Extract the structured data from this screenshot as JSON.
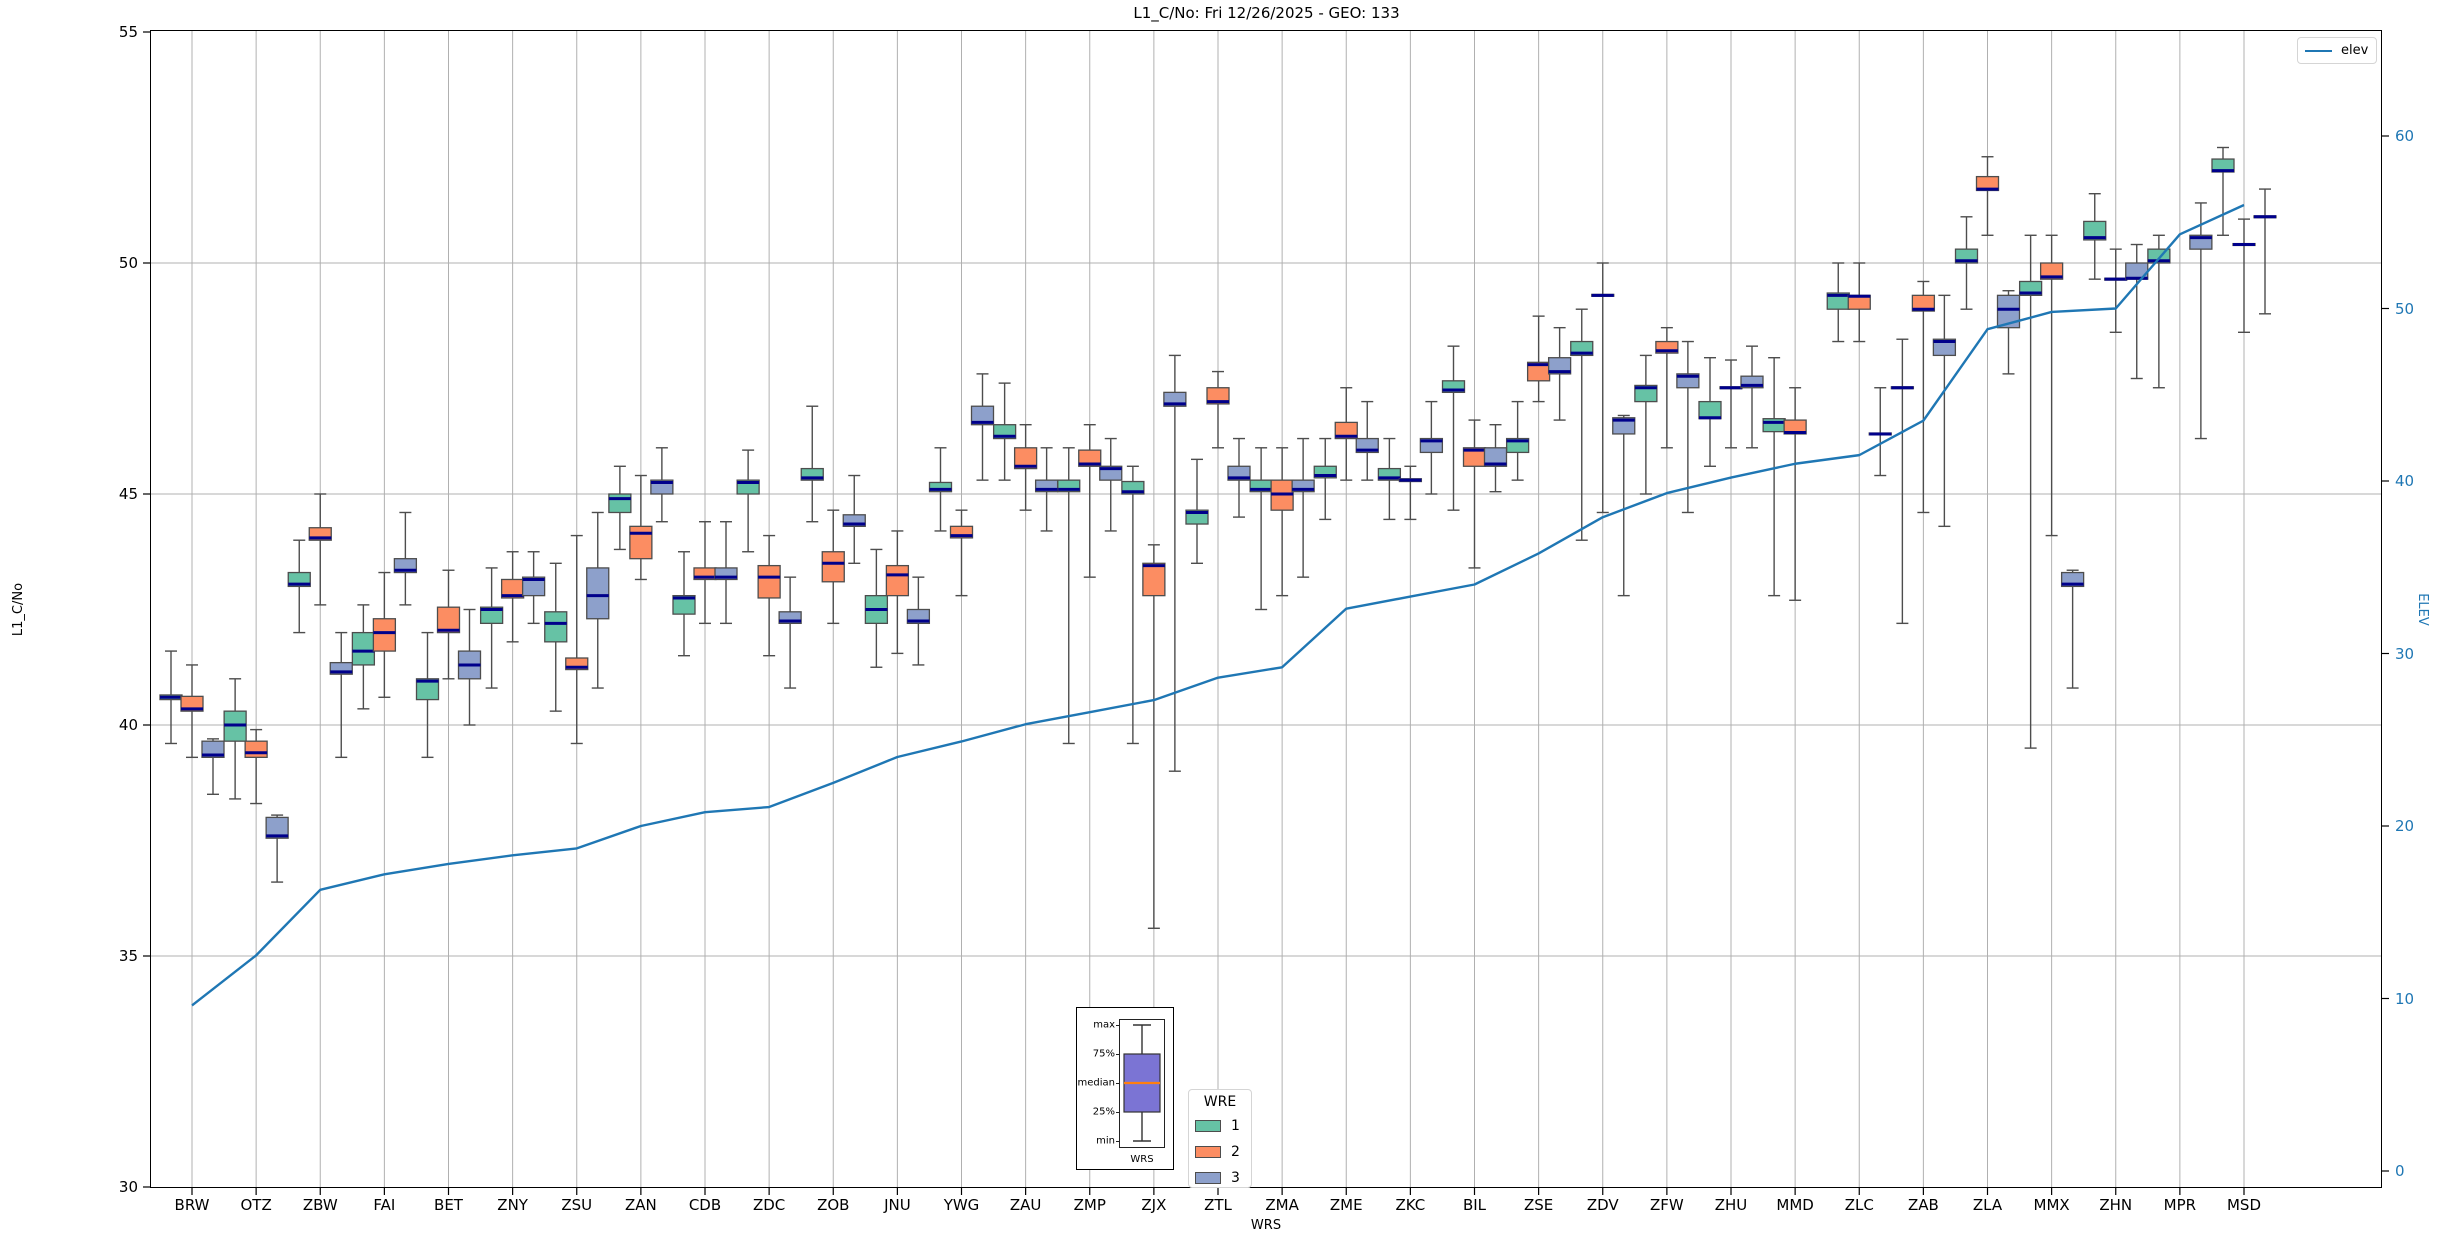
{
  "title": "L1_C/No: Fri 12/26/2025 - GEO: 133",
  "axes": {
    "left": {
      "label": "L1_C/No",
      "ticks": [
        30,
        35,
        40,
        45,
        50,
        55
      ]
    },
    "right": {
      "label": "ELEV",
      "ticks": [
        0,
        10,
        20,
        30,
        40,
        50,
        60
      ],
      "color": "#1f77b4"
    },
    "x": {
      "label": "WRS"
    }
  },
  "legend_elev": {
    "label": "elev"
  },
  "legend_wre": {
    "title": "WRE",
    "items": [
      {
        "label": "1",
        "color": "#66c2a5"
      },
      {
        "label": "2",
        "color": "#fc8d62"
      },
      {
        "label": "3",
        "color": "#8da0cb"
      }
    ]
  },
  "inset": {
    "labels": [
      "max",
      "75%",
      "median",
      "25%",
      "min"
    ],
    "xlabel": "WRS",
    "box_color": "#7b74d4",
    "median_color": "#ff7f0e"
  },
  "chart_data": {
    "type": "grouped-boxplot+line",
    "title": "L1_C/No: Fri 12/26/2025 - GEO: 133",
    "xlabel": "WRS",
    "ylabel_left": "L1_C/No",
    "ylabel_right": "ELEV",
    "ylim_left": [
      30,
      55
    ],
    "ylim_right": [
      0,
      60
    ],
    "grid": true,
    "legend_position": {
      "elev": "upper right",
      "wre": "lower center"
    },
    "box_note": "boxes are [min, q1, median, q3, max]; null = series absent at station",
    "colors": {
      "grid": "#b0b0b0",
      "box_edge": "#4d4d4d",
      "median": "#00008b",
      "whisker": "#4d4d4d",
      "elev_line": "#1f77b4"
    },
    "categories": [
      "BRW",
      "OTZ",
      "ZBW",
      "FAI",
      "BET",
      "ZNY",
      "ZSU",
      "ZAN",
      "CDB",
      "ZDC",
      "ZOB",
      "JNU",
      "YWG",
      "ZAU",
      "ZMP",
      "ZJX",
      "ZTL",
      "ZMA",
      "ZME",
      "ZKC",
      "BIL",
      "ZSE",
      "ZDV",
      "ZFW",
      "ZHU",
      "MMD",
      "ZLC",
      "ZAB",
      "ZLA",
      "MMX",
      "ZHN",
      "MPR",
      "MSD"
    ],
    "series": [
      {
        "name": "1",
        "color": "#66c2a5",
        "boxes": [
          [
            39.6,
            40.55,
            40.6,
            40.65,
            41.6
          ],
          [
            38.4,
            39.65,
            40.0,
            40.3,
            41.0
          ],
          [
            42.0,
            43.0,
            43.05,
            43.3,
            44.0
          ],
          [
            40.35,
            41.3,
            41.6,
            42.0,
            42.6
          ],
          [
            39.3,
            40.55,
            40.95,
            41.0,
            42.0
          ],
          [
            40.8,
            42.2,
            42.5,
            42.55,
            43.4
          ],
          [
            40.3,
            41.8,
            42.2,
            42.45,
            43.5
          ],
          [
            43.8,
            44.6,
            44.9,
            45.0,
            45.6
          ],
          [
            41.5,
            42.4,
            42.75,
            42.8,
            43.75
          ],
          [
            43.75,
            45.0,
            45.25,
            45.3,
            45.95
          ],
          [
            44.4,
            45.3,
            45.35,
            45.55,
            46.9
          ],
          [
            41.25,
            42.2,
            42.5,
            42.8,
            43.8
          ],
          [
            44.2,
            45.05,
            45.1,
            45.25,
            46.0
          ],
          [
            45.3,
            46.2,
            46.25,
            46.5,
            47.4
          ],
          [
            39.6,
            45.05,
            45.1,
            45.3,
            46.0
          ],
          [
            39.6,
            45.0,
            45.05,
            45.27,
            45.6
          ],
          [
            43.5,
            44.35,
            44.6,
            44.65,
            45.75
          ],
          [
            42.5,
            45.05,
            45.1,
            45.3,
            46.0
          ],
          [
            44.45,
            45.35,
            45.4,
            45.6,
            46.2
          ],
          [
            44.45,
            45.3,
            45.35,
            45.55,
            46.2
          ],
          [
            44.65,
            47.2,
            47.25,
            47.45,
            48.2
          ],
          [
            45.3,
            45.9,
            46.15,
            46.2,
            47.0
          ],
          [
            44.0,
            48.0,
            48.05,
            48.3,
            49.0
          ],
          [
            45.0,
            47.0,
            47.3,
            47.35,
            48.0
          ],
          [
            45.6,
            46.63,
            46.65,
            47.0,
            47.95
          ],
          [
            42.8,
            46.35,
            46.55,
            46.63,
            47.95
          ],
          [
            48.3,
            49.0,
            49.3,
            49.35,
            50.0
          ],
          [
            42.2,
            47.28,
            47.3,
            47.32,
            48.35
          ],
          [
            49.0,
            50.0,
            50.05,
            50.3,
            51.0
          ],
          [
            39.5,
            49.3,
            49.35,
            49.6,
            50.6
          ],
          [
            49.65,
            50.5,
            50.55,
            50.9,
            51.5
          ],
          [
            47.3,
            50.0,
            50.05,
            50.3,
            50.6
          ],
          [
            50.6,
            51.97,
            52.0,
            52.25,
            52.5
          ]
        ]
      },
      {
        "name": "2",
        "color": "#fc8d62",
        "boxes": [
          [
            39.3,
            40.3,
            40.35,
            40.62,
            41.3
          ],
          [
            38.3,
            39.3,
            39.4,
            39.65,
            39.9
          ],
          [
            42.6,
            44.0,
            44.05,
            44.27,
            45.0
          ],
          [
            40.6,
            41.6,
            42.0,
            42.3,
            43.3
          ],
          [
            41.0,
            42.0,
            42.05,
            42.55,
            43.35
          ],
          [
            41.8,
            42.75,
            42.8,
            43.15,
            43.75
          ],
          [
            39.6,
            41.2,
            41.25,
            41.45,
            44.1
          ],
          [
            43.15,
            43.6,
            44.15,
            44.3,
            45.4
          ],
          [
            42.2,
            43.15,
            43.2,
            43.4,
            44.4
          ],
          [
            41.5,
            42.75,
            43.2,
            43.45,
            44.1
          ],
          [
            42.2,
            43.1,
            43.5,
            43.75,
            44.65
          ],
          [
            41.55,
            42.8,
            43.25,
            43.45,
            44.2
          ],
          [
            42.8,
            44.05,
            44.1,
            44.3,
            44.65
          ],
          [
            44.65,
            45.55,
            45.6,
            46.0,
            46.5
          ],
          [
            43.2,
            45.6,
            45.65,
            45.95,
            46.5
          ],
          [
            35.6,
            42.8,
            43.45,
            43.5,
            43.9
          ],
          [
            46.0,
            46.95,
            47.0,
            47.3,
            47.65
          ],
          [
            42.8,
            44.65,
            45.0,
            45.3,
            46.0
          ],
          [
            45.3,
            46.2,
            46.25,
            46.55,
            47.3
          ],
          [
            44.45,
            45.27,
            45.3,
            45.33,
            45.6
          ],
          [
            43.4,
            45.6,
            45.95,
            46.0,
            46.6
          ],
          [
            47.0,
            47.45,
            47.8,
            47.85,
            48.85
          ],
          [
            44.6,
            49.28,
            49.3,
            49.32,
            50.0
          ],
          [
            46.0,
            48.05,
            48.1,
            48.3,
            48.6
          ],
          [
            46.0,
            47.28,
            47.3,
            47.32,
            47.9
          ],
          [
            42.7,
            46.3,
            46.33,
            46.6,
            47.3
          ],
          [
            48.3,
            49.0,
            49.28,
            49.3,
            50.0
          ],
          [
            44.6,
            48.96,
            49.0,
            49.3,
            49.6
          ],
          [
            50.6,
            51.57,
            51.6,
            51.87,
            52.3
          ],
          [
            44.1,
            49.65,
            49.7,
            50.0,
            50.6
          ],
          [
            48.5,
            49.63,
            49.65,
            49.67,
            50.3
          ],
          null,
          [
            48.5,
            50.38,
            50.4,
            50.42,
            50.95
          ]
        ]
      },
      {
        "name": "3",
        "color": "#8da0cb",
        "boxes": [
          [
            38.5,
            39.3,
            39.35,
            39.65,
            39.7
          ],
          [
            36.6,
            37.55,
            37.6,
            38.0,
            38.05
          ],
          [
            39.3,
            41.1,
            41.15,
            41.35,
            42.0
          ],
          [
            42.6,
            43.3,
            43.35,
            43.6,
            44.6
          ],
          [
            40.0,
            41.0,
            41.3,
            41.6,
            42.5
          ],
          [
            42.2,
            42.8,
            43.15,
            43.2,
            43.75
          ],
          [
            40.8,
            42.3,
            42.8,
            43.4,
            44.6
          ],
          [
            44.4,
            45.0,
            45.25,
            45.3,
            46.0
          ],
          [
            42.2,
            43.15,
            43.2,
            43.4,
            44.4
          ],
          [
            40.8,
            42.2,
            42.25,
            42.45,
            43.2
          ],
          [
            43.5,
            44.3,
            44.35,
            44.55,
            45.4
          ],
          [
            41.3,
            42.2,
            42.25,
            42.5,
            43.2
          ],
          [
            45.3,
            46.5,
            46.55,
            46.9,
            47.6
          ],
          [
            44.2,
            45.05,
            45.1,
            45.3,
            46.0
          ],
          [
            44.2,
            45.3,
            45.55,
            45.6,
            46.2
          ],
          [
            39.0,
            46.9,
            46.95,
            47.2,
            48.0
          ],
          [
            44.5,
            45.3,
            45.35,
            45.6,
            46.2
          ],
          [
            43.2,
            45.05,
            45.1,
            45.3,
            46.2
          ],
          [
            45.3,
            45.9,
            45.95,
            46.2,
            47.0
          ],
          [
            45.0,
            45.9,
            46.15,
            46.2,
            47.0
          ],
          [
            45.05,
            45.6,
            45.65,
            46.0,
            46.5
          ],
          [
            46.6,
            47.6,
            47.65,
            47.95,
            48.6
          ],
          [
            42.8,
            46.3,
            46.6,
            46.65,
            46.7
          ],
          [
            44.6,
            47.3,
            47.55,
            47.6,
            48.3
          ],
          [
            46.0,
            47.3,
            47.35,
            47.55,
            48.2
          ],
          null,
          [
            45.4,
            46.28,
            46.3,
            46.32,
            47.3
          ],
          [
            44.3,
            48.0,
            48.3,
            48.35,
            49.3
          ],
          [
            47.6,
            48.6,
            49.0,
            49.3,
            49.4
          ],
          [
            40.8,
            43.0,
            43.05,
            43.3,
            43.35
          ],
          [
            47.5,
            49.65,
            49.67,
            50.0,
            50.4
          ],
          [
            46.2,
            50.3,
            50.55,
            50.6,
            51.3
          ],
          [
            48.9,
            50.98,
            51.0,
            51.02,
            51.6
          ]
        ]
      }
    ],
    "line": {
      "name": "elev",
      "color": "#1f77b4",
      "values": [
        9.6,
        12.5,
        16.3,
        17.2,
        17.8,
        18.3,
        18.7,
        20.0,
        20.8,
        21.1,
        22.5,
        24.0,
        24.9,
        25.9,
        26.6,
        27.3,
        28.6,
        29.2,
        32.6,
        33.3,
        34.0,
        35.8,
        37.9,
        39.3,
        40.2,
        41.0,
        41.5,
        43.5,
        48.8,
        49.8,
        50.0,
        54.3,
        56.0
      ]
    }
  }
}
